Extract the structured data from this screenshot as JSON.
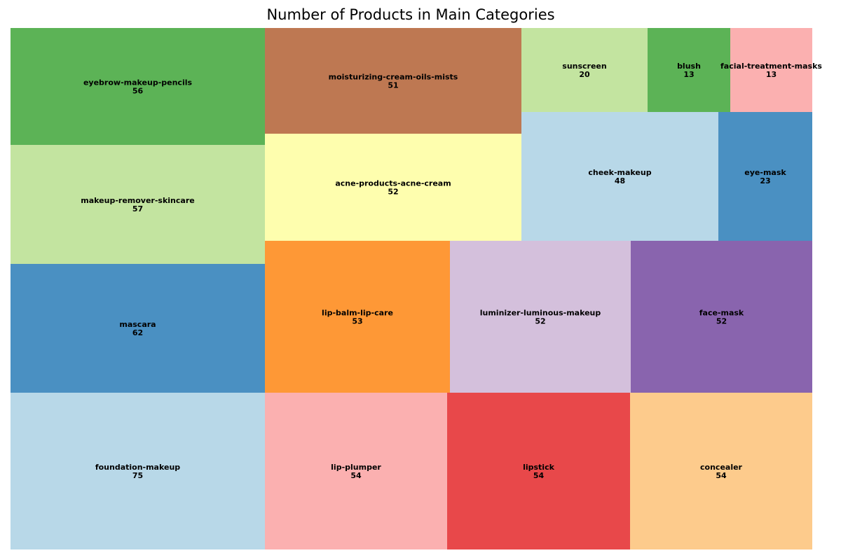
{
  "chart_data": {
    "type": "treemap",
    "title": "Number of Products in Main Categories",
    "items": [
      {
        "label": "foundation-makeup",
        "value": 75,
        "color": "#b8d8e8"
      },
      {
        "label": "mascara",
        "value": 62,
        "color": "#4a90c2"
      },
      {
        "label": "makeup-remover-skincare",
        "value": 57,
        "color": "#c3e4a0"
      },
      {
        "label": "eyebrow-makeup-pencils",
        "value": 56,
        "color": "#5cb356"
      },
      {
        "label": "lip-plumper",
        "value": 54,
        "color": "#fbb0b0"
      },
      {
        "label": "lipstick",
        "value": 54,
        "color": "#e8484a"
      },
      {
        "label": "concealer",
        "value": 54,
        "color": "#fdcb8c"
      },
      {
        "label": "lip-balm-lip-care",
        "value": 53,
        "color": "#fe9836"
      },
      {
        "label": "luminizer-luminous-makeup",
        "value": 52,
        "color": "#d4c0dc"
      },
      {
        "label": "face-mask",
        "value": 52,
        "color": "#8964ae"
      },
      {
        "label": "acne-products-acne-cream",
        "value": 52,
        "color": "#fefeae"
      },
      {
        "label": "moisturizing-cream-oils-mists",
        "value": 51,
        "color": "#be7852"
      },
      {
        "label": "cheek-makeup",
        "value": 48,
        "color": "#b8d8e8"
      },
      {
        "label": "eye-mask",
        "value": 23,
        "color": "#4a90c2"
      },
      {
        "label": "sunscreen",
        "value": 20,
        "color": "#c3e4a0"
      },
      {
        "label": "blush",
        "value": 13,
        "color": "#5cb356"
      },
      {
        "label": "facial-treatment-masks",
        "value": 13,
        "color": "#fbb0b0"
      }
    ]
  }
}
